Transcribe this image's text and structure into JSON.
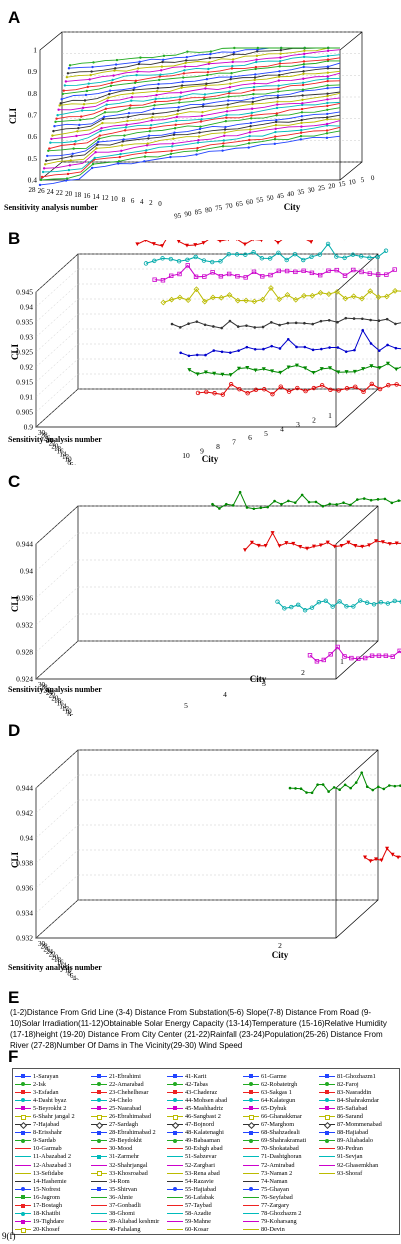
{
  "panels": {
    "A": {
      "letter": "A"
    },
    "B": {
      "letter": "B"
    },
    "C": {
      "letter": "C"
    },
    "D": {
      "letter": "D"
    },
    "E": {
      "letter": "E"
    },
    "F": {
      "letter": "F"
    }
  },
  "figure_tag": "9(f)",
  "note_e": "(1-2)Distance From Grid Line (3-4) Distance From Substation(5-6) Slope(7-8) Distance From Road (9-10)Solar Irradiation(11-12)Obtainable Solar Energy Capacity (13-14)Temperature (15-16)Relative Humidity (17-18)height (19-20) Distance From City Center (21-22)Rainfall (23-24)Population(25-26) Distance From River (27-28)Number Of Dams in The Vicinity(29-30) Wind Speed",
  "chart_data": [
    {
      "id": "A",
      "type": "line",
      "xlabel": "City",
      "ylabel": "CLI",
      "zlabel_side": "Sensitivity analysis number",
      "city_ticks": [
        "95",
        "90",
        "85",
        "80",
        "75",
        "70",
        "65",
        "60",
        "55",
        "50",
        "45",
        "40",
        "35",
        "30",
        "25",
        "20",
        "15",
        "10",
        "5",
        "0"
      ],
      "run_ticks": [
        "28",
        "26",
        "24",
        "22",
        "20",
        "18",
        "16",
        "14",
        "12",
        "10",
        "8",
        "6",
        "4",
        "2",
        "0"
      ],
      "cli_ticks": [
        "0.4",
        "0.5",
        "0.6",
        "0.7",
        "0.8",
        "0.9",
        "1"
      ],
      "ylim": [
        0.4,
        1.0
      ],
      "num_cities": 93,
      "num_runs": 30,
      "series_note": "each line: one sensitivity run; CLI rises with city rank from ~0.4 (city 93) to ~0.95 (city 1)"
    },
    {
      "id": "B",
      "type": "line",
      "xlabel": "City",
      "ylabel": "CLI",
      "zlabel_side": "Sensitivity analysis number",
      "city_ticks": [
        "10",
        "9",
        "8",
        "7",
        "6",
        "5",
        "4",
        "3",
        "2",
        "1"
      ],
      "run_ticks": [
        "30",
        "28",
        "26",
        "24",
        "22",
        "20",
        "18",
        "16",
        "14",
        "12",
        "10",
        "8",
        "6",
        "4",
        "2",
        "0"
      ],
      "cli_ticks": [
        "0.9",
        "0.905",
        "0.91",
        "0.915",
        "0.92",
        "0.925",
        "0.93",
        "0.935",
        "0.94",
        "0.945"
      ],
      "ylim": [
        0.9,
        0.945
      ],
      "series": [
        {
          "name": "1",
          "color": "#0000cc",
          "base": 0.941
        },
        {
          "name": "2",
          "color": "#008800",
          "base": 0.939
        },
        {
          "name": "3",
          "color": "#e00000",
          "base": 0.937
        },
        {
          "name": "4",
          "color": "#00aaaa",
          "base": 0.934
        },
        {
          "name": "5",
          "color": "#cc00cc",
          "base": 0.931
        },
        {
          "name": "6",
          "color": "#bbbb00",
          "base": 0.926
        },
        {
          "name": "7",
          "color": "#333333",
          "base": 0.92
        },
        {
          "name": "8",
          "color": "#0000cc",
          "base": 0.914
        },
        {
          "name": "9",
          "color": "#008800",
          "base": 0.91
        },
        {
          "name": "10",
          "color": "#e00000",
          "base": 0.906
        }
      ]
    },
    {
      "id": "C",
      "type": "line",
      "xlabel": "City",
      "ylabel": "CLI",
      "zlabel_side": "Sensitivity analysis number",
      "city_ticks": [
        "5",
        "4",
        "3",
        "2",
        "1"
      ],
      "run_ticks": [
        "30",
        "28",
        "26",
        "24",
        "22",
        "20",
        "18",
        "16",
        "14",
        "12",
        "10",
        "8",
        "6",
        "4",
        "2",
        "0"
      ],
      "cli_ticks": [
        "0.924",
        "0.928",
        "0.932",
        "0.936",
        "0.94",
        "0.944"
      ],
      "ylim": [
        0.924,
        0.944
      ],
      "series": [
        {
          "name": "1",
          "color": "#0000cc",
          "base": 0.9412
        },
        {
          "name": "2",
          "color": "#008800",
          "base": 0.9388
        },
        {
          "name": "3",
          "color": "#e00000",
          "base": 0.9368
        },
        {
          "name": "4",
          "color": "#00aaaa",
          "base": 0.9322
        },
        {
          "name": "5",
          "color": "#cc00cc",
          "base": 0.9285
        }
      ]
    },
    {
      "id": "D",
      "type": "line",
      "xlabel": "City",
      "ylabel": "CLI",
      "zlabel_side": "Sensitivity analysis number",
      "city_ticks": [
        "2"
      ],
      "run_ticks": [
        "30",
        "28",
        "26",
        "24",
        "22",
        "20",
        "18",
        "16",
        "14",
        "12",
        "10",
        "8",
        "6",
        "4",
        "2",
        "0"
      ],
      "cli_ticks": [
        "0.932",
        "0.934",
        "0.936",
        "0.938",
        "0.94",
        "0.942",
        "0.944"
      ],
      "ylim": [
        0.932,
        0.944
      ],
      "series": [
        {
          "name": "1",
          "color": "#0000cc",
          "base": 0.9408
        },
        {
          "name": "2",
          "color": "#008800",
          "base": 0.9385
        },
        {
          "name": "3",
          "color": "#e00000",
          "base": 0.9365
        }
      ]
    }
  ],
  "legend": {
    "items": [
      {
        "label": "1-Sarayan",
        "color": "#2244ff",
        "marker": "plus"
      },
      {
        "label": "2-Isk",
        "color": "#22aa22",
        "marker": "circle"
      },
      {
        "label": "3-Esfadan",
        "color": "#ee2222",
        "marker": "star"
      },
      {
        "label": "4-Dasht byaz",
        "color": "#00bbbb",
        "marker": "dot"
      },
      {
        "label": "5-Beyrokht 2",
        "color": "#cc00cc",
        "marker": "cross"
      },
      {
        "label": "6-Shahr jangal 2",
        "color": "#bbbb00",
        "marker": "square"
      },
      {
        "label": "7-Hajabad",
        "color": "#333333",
        "marker": "diamond"
      },
      {
        "label": "8-Erisshahr",
        "color": "#2244ff",
        "marker": "tri"
      },
      {
        "label": "9-Sardab",
        "color": "#22aa22",
        "marker": "dot"
      },
      {
        "label": "10-Garmab",
        "color": "#ee2222",
        "marker": "none"
      },
      {
        "label": "11-Abazabad 2",
        "color": "#00bbbb",
        "marker": "none"
      },
      {
        "label": "12-Abazabad 3",
        "color": "#cc00cc",
        "marker": "none"
      },
      {
        "label": "13-Sefidabe",
        "color": "#bbbb00",
        "marker": "none"
      },
      {
        "label": "14-Hashemie",
        "color": "#333333",
        "marker": "none"
      },
      {
        "label": "15-Nofrest",
        "color": "#2244ff",
        "marker": "circle"
      },
      {
        "label": "16-Jagrom",
        "color": "#22aa22",
        "marker": "plus"
      },
      {
        "label": "17-Bostagh",
        "color": "#ee2222",
        "marker": "star"
      },
      {
        "label": "18-Khatibi",
        "color": "#00bbbb",
        "marker": "dot"
      },
      {
        "label": "19-Tighdare",
        "color": "#cc00cc",
        "marker": "cross"
      },
      {
        "label": "20-Khosef",
        "color": "#bbbb00",
        "marker": "square"
      },
      {
        "label": "21-Ebrahimi",
        "color": "#2244ff",
        "marker": "plus"
      },
      {
        "label": "22-Amarabad",
        "color": "#22aa22",
        "marker": "circle"
      },
      {
        "label": "23-Chehelhesar",
        "color": "#ee2222",
        "marker": "star"
      },
      {
        "label": "24-Chelo",
        "color": "#00bbbb",
        "marker": "dot"
      },
      {
        "label": "25-Nasrabad",
        "color": "#cc00cc",
        "marker": "cross"
      },
      {
        "label": "26-Ebrahimabad",
        "color": "#bbbb00",
        "marker": "square"
      },
      {
        "label": "27-Sardagh",
        "color": "#333333",
        "marker": "diamond"
      },
      {
        "label": "28-Ebrahimabad 2",
        "color": "#2244ff",
        "marker": "tri"
      },
      {
        "label": "29-Beydokht",
        "color": "#22aa22",
        "marker": "dot"
      },
      {
        "label": "30-Mood",
        "color": "#ee2222",
        "marker": "none"
      },
      {
        "label": "31-Zarmehr",
        "color": "#00bbbb",
        "marker": "star"
      },
      {
        "label": "32-Shahrjangal",
        "color": "#cc00cc",
        "marker": "none"
      },
      {
        "label": "33-Khosroabad",
        "color": "#bbbb00",
        "marker": "square"
      },
      {
        "label": "34-Rom",
        "color": "#333333",
        "marker": "none"
      },
      {
        "label": "35-Shirvan",
        "color": "#2244ff",
        "marker": "tri"
      },
      {
        "label": "36-Ahnie",
        "color": "#22aa22",
        "marker": "none"
      },
      {
        "label": "37-Gonbadli",
        "color": "#ee2222",
        "marker": "none"
      },
      {
        "label": "38-Ghomi",
        "color": "#00bbbb",
        "marker": "none"
      },
      {
        "label": "39-Aliabad keshmir",
        "color": "#cc00cc",
        "marker": "none"
      },
      {
        "label": "40-Fahalang",
        "color": "#bbbb00",
        "marker": "none"
      },
      {
        "label": "41-Karit",
        "color": "#2244ff",
        "marker": "plus"
      },
      {
        "label": "42-Tabas",
        "color": "#22aa22",
        "marker": "circle"
      },
      {
        "label": "43-Chaderaz",
        "color": "#ee2222",
        "marker": "star"
      },
      {
        "label": "44-Mohsen abad",
        "color": "#00bbbb",
        "marker": "dot"
      },
      {
        "label": "45-Mashhadriz",
        "color": "#cc00cc",
        "marker": "cross"
      },
      {
        "label": "46-Sangbast 2",
        "color": "#bbbb00",
        "marker": "square"
      },
      {
        "label": "47-Bojnord",
        "color": "#333333",
        "marker": "diamond"
      },
      {
        "label": "48-Kalatenaghi",
        "color": "#2244ff",
        "marker": "tri"
      },
      {
        "label": "49-Babaaman",
        "color": "#22aa22",
        "marker": "dot"
      },
      {
        "label": "50-Eshgh abad",
        "color": "#ee2222",
        "marker": "none"
      },
      {
        "label": "51-Sabzevar",
        "color": "#00bbbb",
        "marker": "none"
      },
      {
        "label": "52-Zargbari",
        "color": "#cc00cc",
        "marker": "none"
      },
      {
        "label": "53-Rena abad",
        "color": "#bbbb00",
        "marker": "none"
      },
      {
        "label": "54-Razavie",
        "color": "#333333",
        "marker": "none"
      },
      {
        "label": "55-Hajiabad",
        "color": "#2244ff",
        "marker": "circle"
      },
      {
        "label": "56-Lafabak",
        "color": "#22aa22",
        "marker": "none"
      },
      {
        "label": "57-Taybad",
        "color": "#ee2222",
        "marker": "none"
      },
      {
        "label": "58-Azadie",
        "color": "#00bbbb",
        "marker": "none"
      },
      {
        "label": "59-Mahne",
        "color": "#cc00cc",
        "marker": "none"
      },
      {
        "label": "60-Kosar",
        "color": "#bbbb00",
        "marker": "none"
      },
      {
        "label": "61-Garme",
        "color": "#2244ff",
        "marker": "plus"
      },
      {
        "label": "62-Robatetrgh",
        "color": "#22aa22",
        "marker": "circle"
      },
      {
        "label": "63-Sakgas 1",
        "color": "#ee2222",
        "marker": "star"
      },
      {
        "label": "64-Kalategun",
        "color": "#00bbbb",
        "marker": "dot"
      },
      {
        "label": "65-Dyhuk",
        "color": "#cc00cc",
        "marker": "cross"
      },
      {
        "label": "66-Ghanakkmar",
        "color": "#bbbb00",
        "marker": "square"
      },
      {
        "label": "67-Marghom",
        "color": "#333333",
        "marker": "diamond"
      },
      {
        "label": "68-Shahzadeali",
        "color": "#2244ff",
        "marker": "tri"
      },
      {
        "label": "69-Shahrakramati",
        "color": "#22aa22",
        "marker": "dot"
      },
      {
        "label": "70-Shokatabad",
        "color": "#ee2222",
        "marker": "none"
      },
      {
        "label": "71-Dashtghoran",
        "color": "#00bbbb",
        "marker": "none"
      },
      {
        "label": "72-Amirabad",
        "color": "#cc00cc",
        "marker": "none"
      },
      {
        "label": "73-Naman 2",
        "color": "#bbbb00",
        "marker": "none"
      },
      {
        "label": "74-Naman",
        "color": "#333333",
        "marker": "none"
      },
      {
        "label": "75-Ghayan",
        "color": "#2244ff",
        "marker": "circle"
      },
      {
        "label": "76-Seyfabad",
        "color": "#22aa22",
        "marker": "none"
      },
      {
        "label": "77-Zargary",
        "color": "#ee2222",
        "marker": "none"
      },
      {
        "label": "78-Ghozhazm 2",
        "color": "#00bbbb",
        "marker": "none"
      },
      {
        "label": "79-Koharsang",
        "color": "#cc00cc",
        "marker": "none"
      },
      {
        "label": "80-Devin",
        "color": "#bbbb00",
        "marker": "none"
      },
      {
        "label": "81-Ghozhazm1",
        "color": "#2244ff",
        "marker": "plus"
      },
      {
        "label": "82-Faroj",
        "color": "#22aa22",
        "marker": "circle"
      },
      {
        "label": "83-Nasraddin",
        "color": "#ee2222",
        "marker": "star"
      },
      {
        "label": "84-Shahrakmdar",
        "color": "#00bbbb",
        "marker": "dot"
      },
      {
        "label": "85-Safiabad",
        "color": "#cc00cc",
        "marker": "cross"
      },
      {
        "label": "86-Sarand",
        "color": "#bbbb00",
        "marker": "square"
      },
      {
        "label": "87-Mommenabad",
        "color": "#333333",
        "marker": "diamond"
      },
      {
        "label": "88-Hajiabad",
        "color": "#2244ff",
        "marker": "tri"
      },
      {
        "label": "89-Aliabadalo",
        "color": "#22aa22",
        "marker": "dot"
      },
      {
        "label": "90-Pedran",
        "color": "#ee2222",
        "marker": "none"
      },
      {
        "label": "91-Sevjan",
        "color": "#00bbbb",
        "marker": "none"
      },
      {
        "label": "92-Ghasemkhan",
        "color": "#cc00cc",
        "marker": "none"
      },
      {
        "label": "93-Shoraf",
        "color": "#bbbb00",
        "marker": "none"
      }
    ]
  }
}
